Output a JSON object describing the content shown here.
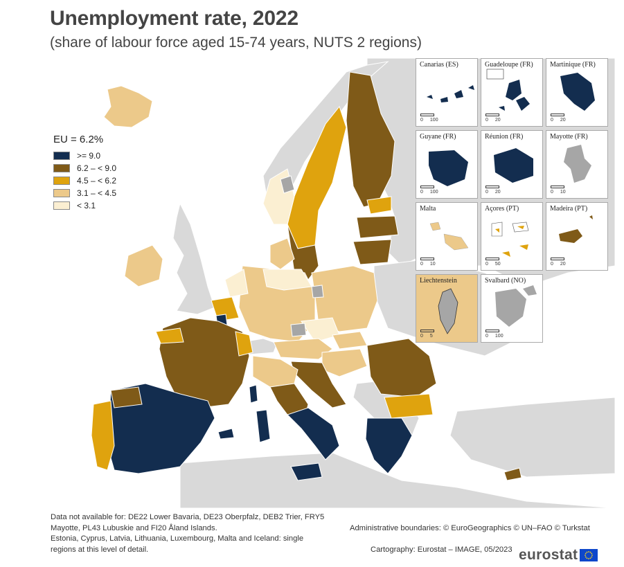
{
  "title": "Unemployment rate, 2022",
  "subtitle": "(share of labour force aged 15-74 years, NUTS 2 regions)",
  "legend": {
    "title": "EU = 6.2%",
    "classes": [
      {
        "label": ">= 9.0",
        "color": "#132d4f"
      },
      {
        "label": "6.2 – < 9.0",
        "color": "#7f5a18"
      },
      {
        "label": "4.5 – < 6.2",
        "color": "#dfa30e"
      },
      {
        "label": "3.1 – < 4.5",
        "color": "#ecc98a"
      },
      {
        "label": "< 3.1",
        "color": "#fbefd2"
      }
    ]
  },
  "colors": {
    "sea": "#ffffff",
    "non_eu_land": "#d9d9d9",
    "no_data": "#a6a6a6",
    "border": "#ffffff"
  },
  "insets": [
    {
      "label": "Canarias (ES)",
      "scale": [
        "0",
        "100"
      ]
    },
    {
      "label": "Guadeloupe (FR)",
      "scale": [
        "0",
        "20"
      ]
    },
    {
      "label": "Martinique (FR)",
      "scale": [
        "0",
        "20"
      ]
    },
    {
      "label": "Guyane (FR)",
      "scale": [
        "0",
        "100"
      ]
    },
    {
      "label": "Réunion (FR)",
      "scale": [
        "0",
        "20"
      ]
    },
    {
      "label": "Mayotte (FR)",
      "scale": [
        "0",
        "10"
      ]
    },
    {
      "label": "Malta",
      "scale": [
        "0",
        "10"
      ]
    },
    {
      "label": "Açores (PT)",
      "scale": [
        "0",
        "50"
      ]
    },
    {
      "label": "Madeira (PT)",
      "scale": [
        "0",
        "20"
      ]
    },
    {
      "label": "Liechtenstein",
      "scale": [
        "0",
        "5"
      ]
    },
    {
      "label": "Svalbard (NO)",
      "scale": [
        "0",
        "100"
      ]
    }
  ],
  "footnote": "Data not available for: DE22 Lower Bavaria, DE23 Oberpfalz, DEB2 Trier, FRY5\nMayotte, PL43 Lubuskie and FI20 Åland Islands.\nEstonia, Cyprus, Latvia, Lithuania, Luxembourg, Malta and Iceland: single\nregions at this level of detail.",
  "credits": {
    "line1": "Administrative boundaries: © EuroGeographics © UN–FAO © Turkstat",
    "line2": "Cartography: Eurostat – IMAGE, 05/2023"
  },
  "brand": "eurostat"
}
